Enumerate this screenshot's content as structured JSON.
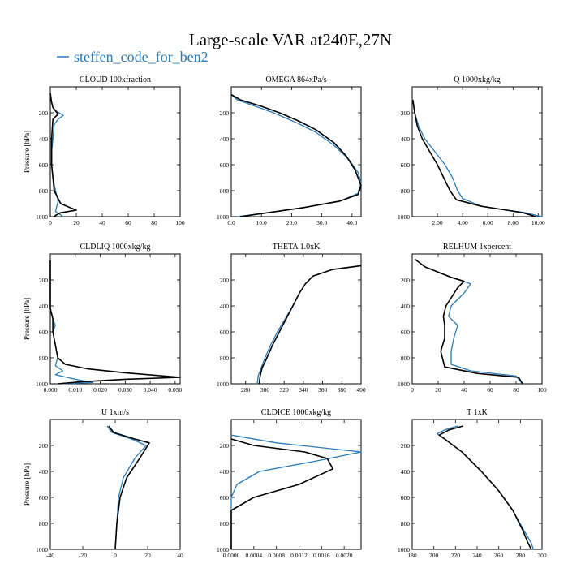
{
  "title": "Large-scale VAR at240E,27N",
  "legend": {
    "label": "steffen_code_for_ben2",
    "color": "#2b7bb9"
  },
  "colors": {
    "reference": "#000000",
    "series": "#2b7bb9"
  },
  "chart_data": [
    {
      "type": "line",
      "title": "CLOUD  100xfraction",
      "ylabel": "Pressure [hPa]",
      "xlim": [
        0,
        100
      ],
      "ylim": [
        1000,
        0
      ],
      "y_inverted": true,
      "xticks": [
        0,
        20,
        40,
        60,
        80,
        100
      ],
      "xtick_labels": [
        "0",
        "20",
        "40",
        "60",
        "80",
        "100"
      ],
      "yticks": [
        200,
        400,
        600,
        800,
        1000
      ],
      "ytick_labels": [
        "200",
        "400",
        "600",
        "800",
        "1000"
      ],
      "series": [
        {
          "name": "steffen_code_for_ben2",
          "color": "#2b7bb9",
          "x": [
            0,
            1,
            2,
            5,
            10,
            6,
            3,
            2,
            1,
            1,
            2,
            4,
            6,
            5,
            4,
            10
          ],
          "y": [
            50,
            120,
            160,
            190,
            220,
            250,
            290,
            400,
            500,
            600,
            700,
            800,
            880,
            920,
            960,
            1000
          ]
        },
        {
          "name": "",
          "color": "#000000",
          "x": [
            0,
            1,
            2,
            6,
            2,
            1,
            1,
            1,
            2,
            3,
            8,
            20,
            8,
            4,
            3
          ],
          "y": [
            50,
            120,
            160,
            210,
            250,
            400,
            500,
            600,
            700,
            800,
            900,
            950,
            970,
            990,
            1000
          ]
        }
      ]
    },
    {
      "type": "line",
      "title": "OMEGA  864xPa/s",
      "ylabel": "",
      "xlim": [
        0,
        43
      ],
      "ylim": [
        1000,
        0
      ],
      "y_inverted": true,
      "xticks": [
        0,
        10,
        20,
        30,
        40
      ],
      "xtick_labels": [
        "0.0",
        "10.0",
        "20.0",
        "30.0",
        "40.0"
      ],
      "yticks": [
        200,
        400,
        600,
        800,
        1000
      ],
      "ytick_labels": [
        "200",
        "400",
        "600",
        "800",
        "1000"
      ],
      "series": [
        {
          "name": "steffen_code_for_ben2",
          "color": "#2b7bb9",
          "x": [
            0,
            2,
            8,
            14,
            22,
            28,
            34,
            39,
            42,
            43,
            42,
            36,
            24,
            12,
            2
          ],
          "y": [
            60,
            100,
            150,
            200,
            280,
            350,
            450,
            560,
            660,
            740,
            820,
            880,
            930,
            970,
            1000
          ]
        },
        {
          "name": "",
          "color": "#000000",
          "x": [
            0,
            3,
            10,
            16,
            22,
            28,
            34,
            38,
            41,
            43,
            42,
            36,
            24,
            12,
            3
          ],
          "y": [
            60,
            100,
            150,
            200,
            260,
            330,
            430,
            530,
            640,
            760,
            830,
            880,
            930,
            970,
            1000
          ]
        }
      ]
    },
    {
      "type": "line",
      "title": "Q  1000xkg/kg",
      "ylabel": "",
      "xlim": [
        0,
        10.3
      ],
      "ylim": [
        1000,
        0
      ],
      "y_inverted": true,
      "xticks": [
        2,
        4,
        6,
        8,
        10
      ],
      "xtick_labels": [
        "2.00",
        "4.00",
        "6.00",
        "8.00",
        "10.00"
      ],
      "yticks": [
        200,
        400,
        600,
        800,
        1000
      ],
      "ytick_labels": [
        "200",
        "400",
        "600",
        "800",
        "1000"
      ],
      "series": [
        {
          "name": "steffen_code_for_ben2",
          "color": "#2b7bb9",
          "x": [
            0.05,
            0.2,
            0.5,
            1.0,
            1.8,
            2.6,
            3.2,
            3.6,
            4.0,
            5.5,
            7.5,
            9.0,
            10.3
          ],
          "y": [
            100,
            200,
            300,
            400,
            500,
            600,
            700,
            800,
            860,
            920,
            950,
            970,
            1000
          ]
        },
        {
          "name": "",
          "color": "#000000",
          "x": [
            0.05,
            0.2,
            0.4,
            0.8,
            1.4,
            2.0,
            2.5,
            3.0,
            3.5,
            5.5,
            7.5,
            8.8,
            9.8
          ],
          "y": [
            100,
            200,
            300,
            400,
            500,
            600,
            700,
            800,
            870,
            920,
            950,
            970,
            1000
          ]
        }
      ]
    },
    {
      "type": "line",
      "title": "CLDLIQ  1000xkg/kg",
      "ylabel": "Pressure [hPa]",
      "xlim": [
        0,
        0.052
      ],
      "ylim": [
        1000,
        0
      ],
      "y_inverted": true,
      "xticks": [
        0,
        0.01,
        0.02,
        0.03,
        0.04,
        0.05
      ],
      "xtick_labels": [
        "0.000",
        "0.010",
        "0.020",
        "0.030",
        "0.040",
        "0.050"
      ],
      "yticks": [
        200,
        400,
        600,
        800,
        1000
      ],
      "ytick_labels": [
        "200",
        "400",
        "600",
        "800",
        "1000"
      ],
      "series": [
        {
          "name": "steffen_code_for_ben2",
          "color": "#2b7bb9",
          "x": [
            0,
            0,
            0.001,
            0.002,
            0.001,
            0.002,
            0.003,
            0.002,
            0.005,
            0.002,
            0.01,
            0.017,
            0.004
          ],
          "y": [
            50,
            420,
            500,
            550,
            600,
            700,
            800,
            860,
            900,
            930,
            965,
            990,
            1000
          ]
        },
        {
          "name": "",
          "color": "#000000",
          "x": [
            0,
            0,
            0.001,
            0.001,
            0.002,
            0.003,
            0.006,
            0.015,
            0.03,
            0.052,
            0.03,
            0.012,
            0.003
          ],
          "y": [
            50,
            420,
            500,
            600,
            700,
            800,
            850,
            885,
            915,
            950,
            965,
            985,
            1000
          ]
        }
      ]
    },
    {
      "type": "line",
      "title": "THETA  1.0xK",
      "ylabel": "",
      "xlim": [
        265,
        400
      ],
      "ylim": [
        1000,
        0
      ],
      "y_inverted": true,
      "xticks": [
        280,
        300,
        320,
        340,
        360,
        380,
        400
      ],
      "xtick_labels": [
        "280",
        "300",
        "320",
        "340",
        "360",
        "380",
        "400"
      ],
      "yticks": [
        200,
        400,
        600,
        800,
        1000
      ],
      "ytick_labels": [
        "200",
        "400",
        "600",
        "800",
        "1000"
      ],
      "series": [
        {
          "name": "steffen_code_for_ben2",
          "color": "#2b7bb9",
          "x": [
            400,
            370,
            350,
            342,
            336,
            329,
            321,
            313,
            306,
            300,
            296,
            293,
            292
          ],
          "y": [
            90,
            120,
            170,
            230,
            300,
            400,
            500,
            600,
            700,
            800,
            880,
            940,
            1000
          ]
        },
        {
          "name": "",
          "color": "#000000",
          "x": [
            400,
            370,
            350,
            342,
            336,
            329,
            322,
            315,
            308,
            302,
            297,
            295,
            294
          ],
          "y": [
            90,
            120,
            170,
            230,
            300,
            400,
            500,
            600,
            700,
            800,
            880,
            940,
            1000
          ]
        }
      ]
    },
    {
      "type": "line",
      "title": "RELHUM  1xpercent",
      "ylabel": "",
      "xlim": [
        0,
        100
      ],
      "ylim": [
        1000,
        0
      ],
      "y_inverted": true,
      "xticks": [
        0,
        20,
        40,
        60,
        80,
        100
      ],
      "xtick_labels": [
        "0",
        "20",
        "40",
        "60",
        "80",
        "100"
      ],
      "yticks": [
        200,
        400,
        600,
        800,
        1000
      ],
      "ytick_labels": [
        "200",
        "400",
        "600",
        "800",
        "1000"
      ],
      "series": [
        {
          "name": "steffen_code_for_ben2",
          "color": "#2b7bb9",
          "x": [
            2,
            10,
            30,
            45,
            40,
            30,
            28,
            35,
            32,
            30,
            30,
            45,
            80,
            85
          ],
          "y": [
            40,
            100,
            180,
            230,
            300,
            400,
            480,
            550,
            650,
            750,
            850,
            900,
            940,
            1000
          ]
        },
        {
          "name": "",
          "color": "#000000",
          "x": [
            2,
            10,
            30,
            40,
            35,
            26,
            24,
            25,
            25,
            22,
            25,
            50,
            82,
            85
          ],
          "y": [
            40,
            100,
            180,
            210,
            260,
            400,
            480,
            550,
            650,
            750,
            870,
            920,
            950,
            1000
          ]
        }
      ]
    },
    {
      "type": "line",
      "title": "U  1xm/s",
      "ylabel": "Pressure [hPa]",
      "xlim": [
        -40,
        40
      ],
      "ylim": [
        1000,
        0
      ],
      "y_inverted": true,
      "xticks": [
        -40,
        -20,
        0,
        20,
        40
      ],
      "xtick_labels": [
        "-40",
        "-20",
        "0",
        "20",
        "40"
      ],
      "yticks": [
        200,
        400,
        600,
        800,
        1000
      ],
      "ytick_labels": [
        "200",
        "400",
        "600",
        "800",
        "1000"
      ],
      "series": [
        {
          "name": "steffen_code_for_ben2",
          "color": "#2b7bb9",
          "x": [
            -5,
            -2,
            10,
            19,
            12,
            5,
            2,
            1,
            0
          ],
          "y": [
            50,
            100,
            150,
            200,
            300,
            450,
            600,
            800,
            1000
          ]
        },
        {
          "name": "",
          "color": "#000000",
          "x": [
            -4,
            -1,
            12,
            21,
            15,
            7,
            3,
            1,
            0
          ],
          "y": [
            50,
            100,
            150,
            180,
            300,
            450,
            600,
            800,
            1000
          ]
        }
      ]
    },
    {
      "type": "line",
      "title": "CLDICE  1000xkg/kg",
      "ylabel": "",
      "xlim": [
        0,
        0.0023
      ],
      "ylim": [
        1000,
        0
      ],
      "y_inverted": true,
      "xticks": [
        0,
        0.0004,
        0.0008,
        0.0012,
        0.0016,
        0.002
      ],
      "xtick_labels": [
        "0.0000",
        "0.0004",
        "0.0008",
        "0.0012",
        "0.0016",
        "0.0020"
      ],
      "yticks": [
        200,
        400,
        600,
        800,
        1000
      ],
      "ytick_labels": [
        "200",
        "400",
        "600",
        "800",
        "1000"
      ],
      "series": [
        {
          "name": "steffen_code_for_ben2",
          "color": "#2b7bb9",
          "x": [
            0,
            0.0008,
            0.0023,
            0.0015,
            0.0005,
            0.0001,
            0,
            0
          ],
          "y": [
            120,
            180,
            250,
            320,
            400,
            500,
            600,
            1000
          ]
        },
        {
          "name": "",
          "color": "#000000",
          "x": [
            0,
            0.0004,
            0.0013,
            0.0017,
            0.0018,
            0.0012,
            0.0004,
            0,
            0
          ],
          "y": [
            150,
            200,
            250,
            300,
            380,
            500,
            600,
            700,
            1000
          ]
        }
      ]
    },
    {
      "type": "line",
      "title": "T  1xK",
      "ylabel": "",
      "xlim": [
        180,
        300
      ],
      "ylim": [
        1000,
        0
      ],
      "y_inverted": true,
      "xticks": [
        180,
        200,
        220,
        240,
        260,
        280,
        300
      ],
      "xtick_labels": [
        "180",
        "200",
        "220",
        "240",
        "260",
        "280",
        "300"
      ],
      "yticks": [
        200,
        400,
        600,
        800,
        1000
      ],
      "ytick_labels": [
        "200",
        "400",
        "600",
        "800",
        "1000"
      ],
      "series": [
        {
          "name": "steffen_code_for_ben2",
          "color": "#2b7bb9",
          "x": [
            222,
            210,
            203,
            210,
            226,
            244,
            260,
            273,
            283,
            290,
            292
          ],
          "y": [
            50,
            80,
            110,
            150,
            250,
            400,
            550,
            700,
            850,
            950,
            1000
          ]
        },
        {
          "name": "",
          "color": "#000000",
          "x": [
            227,
            214,
            205,
            210,
            226,
            244,
            260,
            273,
            282,
            287,
            290
          ],
          "y": [
            50,
            80,
            120,
            150,
            250,
            400,
            550,
            700,
            850,
            950,
            1000
          ]
        }
      ]
    }
  ]
}
